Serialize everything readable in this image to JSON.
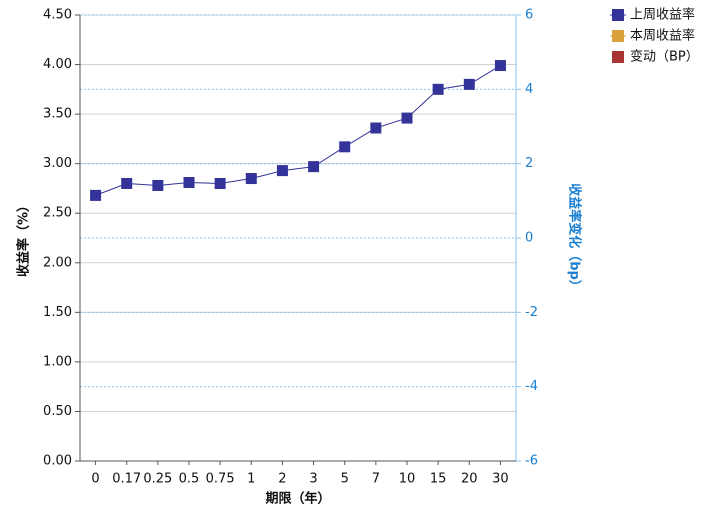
{
  "chart_data": {
    "type": "line",
    "x_label": "期限（年）",
    "y_label": "收益率（%）",
    "y2_label": "收益率变化（bp）",
    "categories": [
      "0",
      "0.17",
      "0.25",
      "0.5",
      "0.75",
      "1",
      "2",
      "3",
      "5",
      "7",
      "10",
      "15",
      "20",
      "30"
    ],
    "series": [
      {
        "name": "上周收益率",
        "color": "#333399",
        "values": [
          2.68,
          2.8,
          2.78,
          2.81,
          2.8,
          2.85,
          2.93,
          2.97,
          3.17,
          3.36,
          3.46,
          3.75,
          3.8,
          3.99
        ]
      },
      {
        "name": "本周收益率",
        "color": "#d9a23a",
        "values": [
          null,
          null,
          null,
          null,
          null,
          null,
          null,
          null,
          null,
          null,
          null,
          null,
          null,
          null
        ]
      },
      {
        "name": "变动（BP）",
        "color": "#a83434",
        "axis": "y2",
        "values": [
          null,
          null,
          null,
          null,
          null,
          null,
          null,
          null,
          null,
          null,
          null,
          null,
          null,
          null
        ]
      }
    ],
    "ylim": [
      0,
      4.5
    ],
    "yticks": [
      {
        "value": 0,
        "label": "0.00"
      },
      {
        "value": 0.5,
        "label": "0.50"
      },
      {
        "value": 1,
        "label": "1.00"
      },
      {
        "value": 1.5,
        "label": "1.50"
      },
      {
        "value": 2,
        "label": "2.00"
      },
      {
        "value": 2.5,
        "label": "2.50"
      },
      {
        "value": 3,
        "label": "3.00"
      },
      {
        "value": 3.5,
        "label": "3.50"
      },
      {
        "value": 4,
        "label": "4.00"
      },
      {
        "value": 4.5,
        "label": "4.50"
      }
    ],
    "y2lim": [
      -6,
      6
    ],
    "y2ticks": [
      -6,
      -4,
      -2,
      0,
      2,
      4,
      6
    ],
    "grid": true,
    "legend": "top-right"
  }
}
